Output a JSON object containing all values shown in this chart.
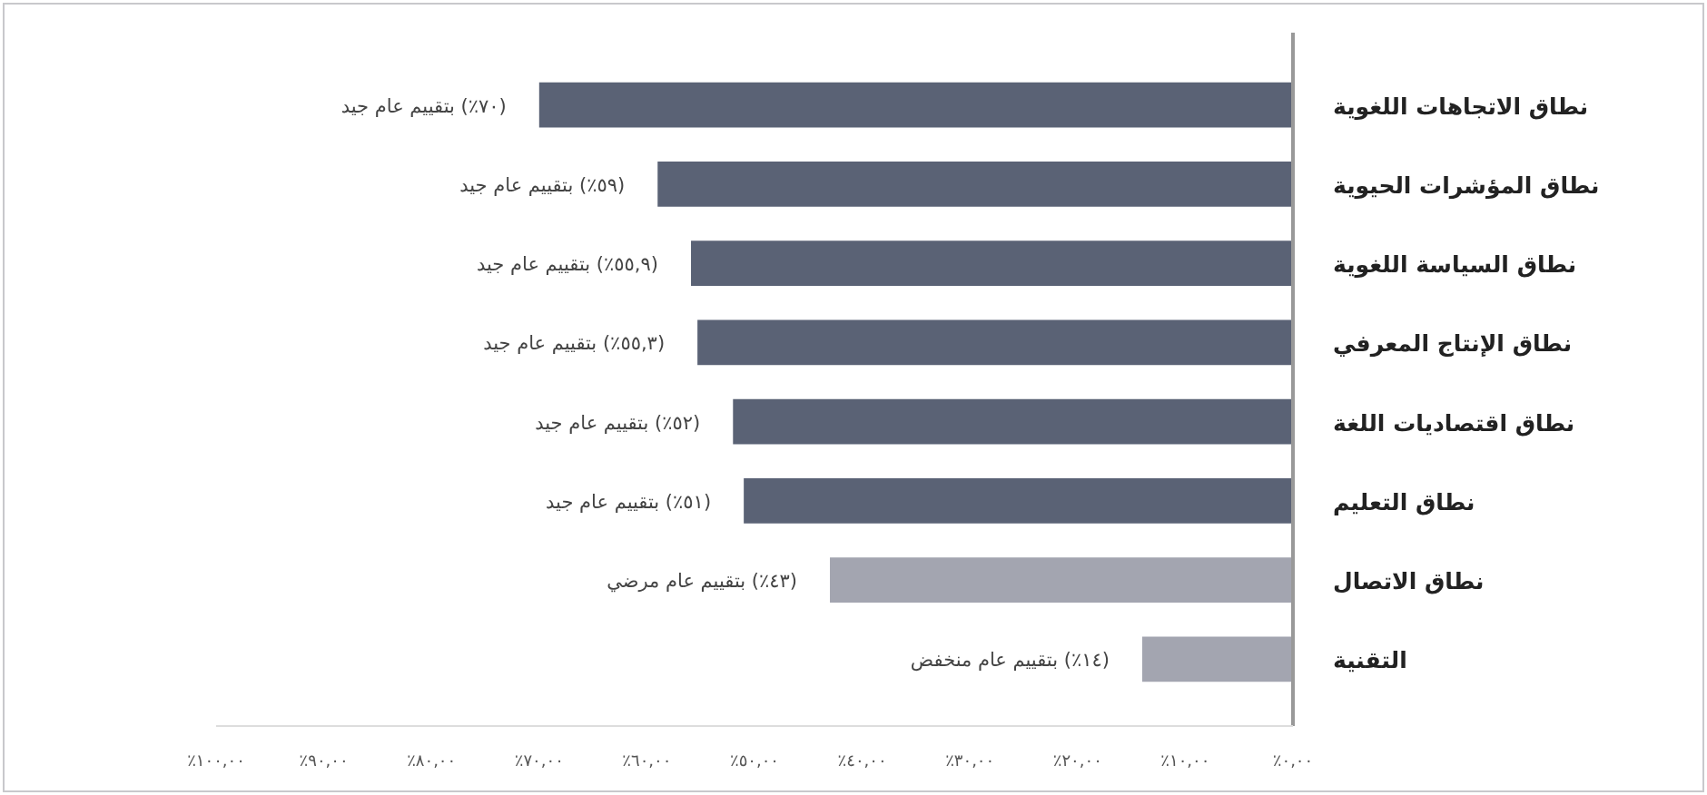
{
  "chart_data": {
    "type": "bar",
    "orientation": "horizontal",
    "categories": [
      "نطاق الاتجاهات اللغوية",
      "نطاق المؤشرات الحيوية",
      "نطاق السياسة اللغوية",
      "نطاق الإنتاج المعرفي",
      "نطاق اقتصاديات اللغة",
      "نطاق التعليم",
      "نطاق الاتصال",
      "التقنية"
    ],
    "values": [
      70,
      59,
      55.9,
      55.3,
      52,
      51,
      43,
      14
    ],
    "colors": [
      "#5a6275",
      "#5a6275",
      "#5a6275",
      "#5a6275",
      "#5a6275",
      "#5a6275",
      "#a3a5b0",
      "#a3a5b0"
    ],
    "value_labels": [
      "(٧٠٪) بتقييم عام جيد",
      "(٥٩٪) بتقييم عام جيد",
      "(٥٥,٩٪) بتقييم عام جيد",
      "(٥٥,٣٪) بتقييم عام جيد",
      "(٥٢٪) بتقييم عام جيد",
      "(٥١٪) بتقييم عام جيد",
      "(٤٣٪) بتقييم عام مرضي",
      "(١٤٪) بتقييم عام منخفض"
    ],
    "xlim": [
      100,
      0
    ],
    "xticks": [
      {
        "value": 100,
        "label": "١٠٠,٠٠٪"
      },
      {
        "value": 90,
        "label": "٩٠,٠٠٪"
      },
      {
        "value": 80,
        "label": "٨٠,٠٠٪"
      },
      {
        "value": 70,
        "label": "٧٠,٠٠٪"
      },
      {
        "value": 60,
        "label": "٦٠,٠٠٪"
      },
      {
        "value": 50,
        "label": "٥٠,٠٠٪"
      },
      {
        "value": 40,
        "label": "٤٠,٠٠٪"
      },
      {
        "value": 30,
        "label": "٣٠,٠٠٪"
      },
      {
        "value": 20,
        "label": "٢٠,٠٠٪"
      },
      {
        "value": 10,
        "label": "١٠,٠٠٪"
      },
      {
        "value": 0,
        "label": "٠,٠٠٪"
      }
    ],
    "grid": false
  }
}
